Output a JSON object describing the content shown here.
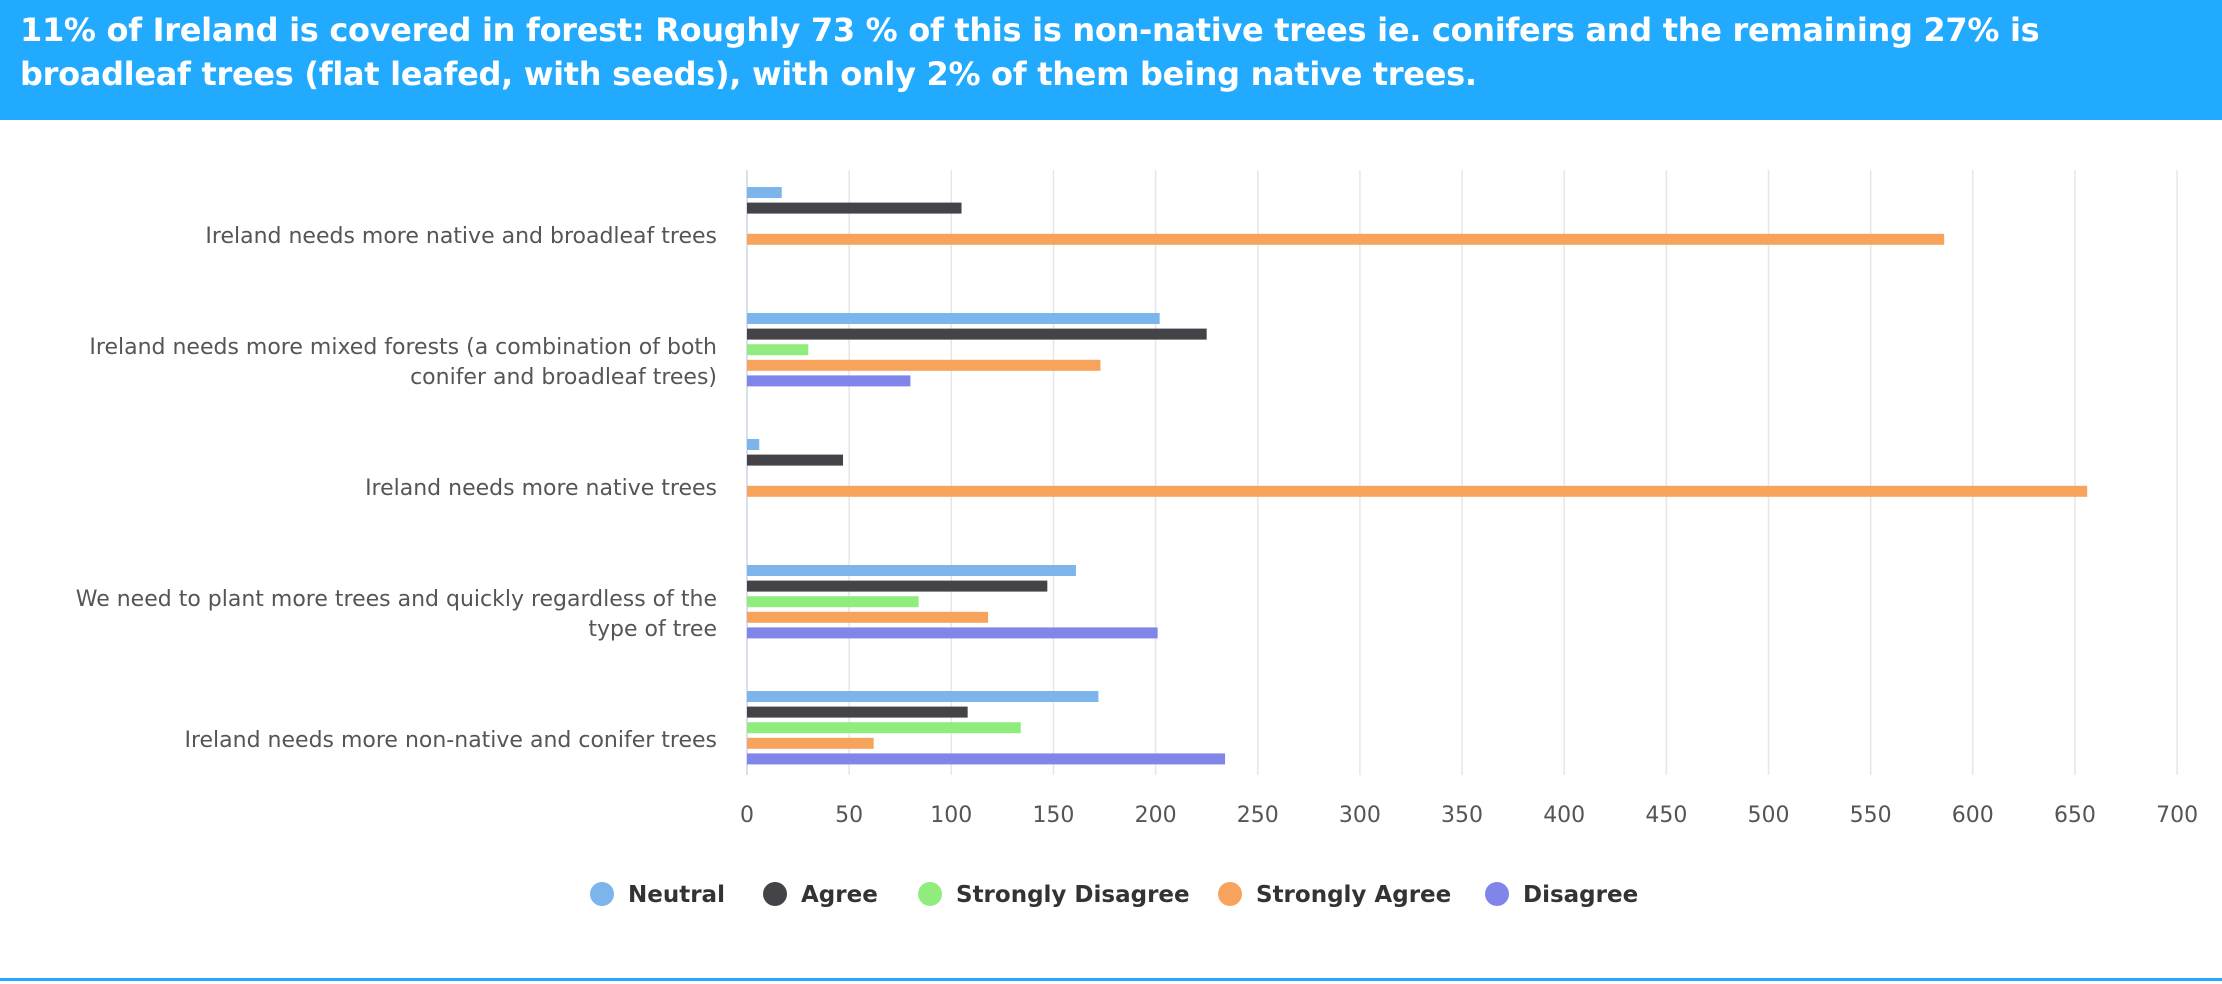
{
  "header": {
    "title": "11% of Ireland is covered in forest: Roughly 73 % of this is non-native trees ie. conifers and the remaining 27% is broadleaf trees (flat leafed, with seeds), with only 2% of them being native trees."
  },
  "colors": {
    "banner": "#22aaff",
    "gridline": "#e6e6e6",
    "axis": "#ccd6eb"
  },
  "chart_data": {
    "type": "bar",
    "orientation": "horizontal",
    "categories": [
      [
        "Ireland needs more native and broadleaf trees"
      ],
      [
        "Ireland needs more mixed forests (a combination of both",
        "conifer and broadleaf trees)"
      ],
      [
        "Ireland needs more native trees"
      ],
      [
        "We need to plant more trees and quickly regardless of the",
        "type of tree"
      ],
      [
        "Ireland needs more non-native and conifer trees"
      ]
    ],
    "series": [
      {
        "name": "Neutral",
        "color": "#7cb5ec",
        "values": [
          17,
          202,
          6,
          161,
          172
        ]
      },
      {
        "name": "Agree",
        "color": "#434348",
        "values": [
          105,
          225,
          47,
          147,
          108
        ]
      },
      {
        "name": "Strongly Disagree",
        "color": "#90ed7d",
        "values": [
          0,
          30,
          0,
          84,
          134
        ]
      },
      {
        "name": "Strongly Agree",
        "color": "#f7a35c",
        "values": [
          586,
          173,
          656,
          118,
          62
        ]
      },
      {
        "name": "Disagree",
        "color": "#8085e9",
        "values": [
          0,
          80,
          0,
          201,
          234
        ]
      }
    ],
    "xticks": [
      "0",
      "50",
      "100",
      "150",
      "200",
      "250",
      "300",
      "350",
      "400",
      "450",
      "500",
      "550",
      "600",
      "650",
      "700"
    ],
    "xlim": [
      0,
      700
    ],
    "grid": true,
    "legend_position": "bottom-center"
  }
}
